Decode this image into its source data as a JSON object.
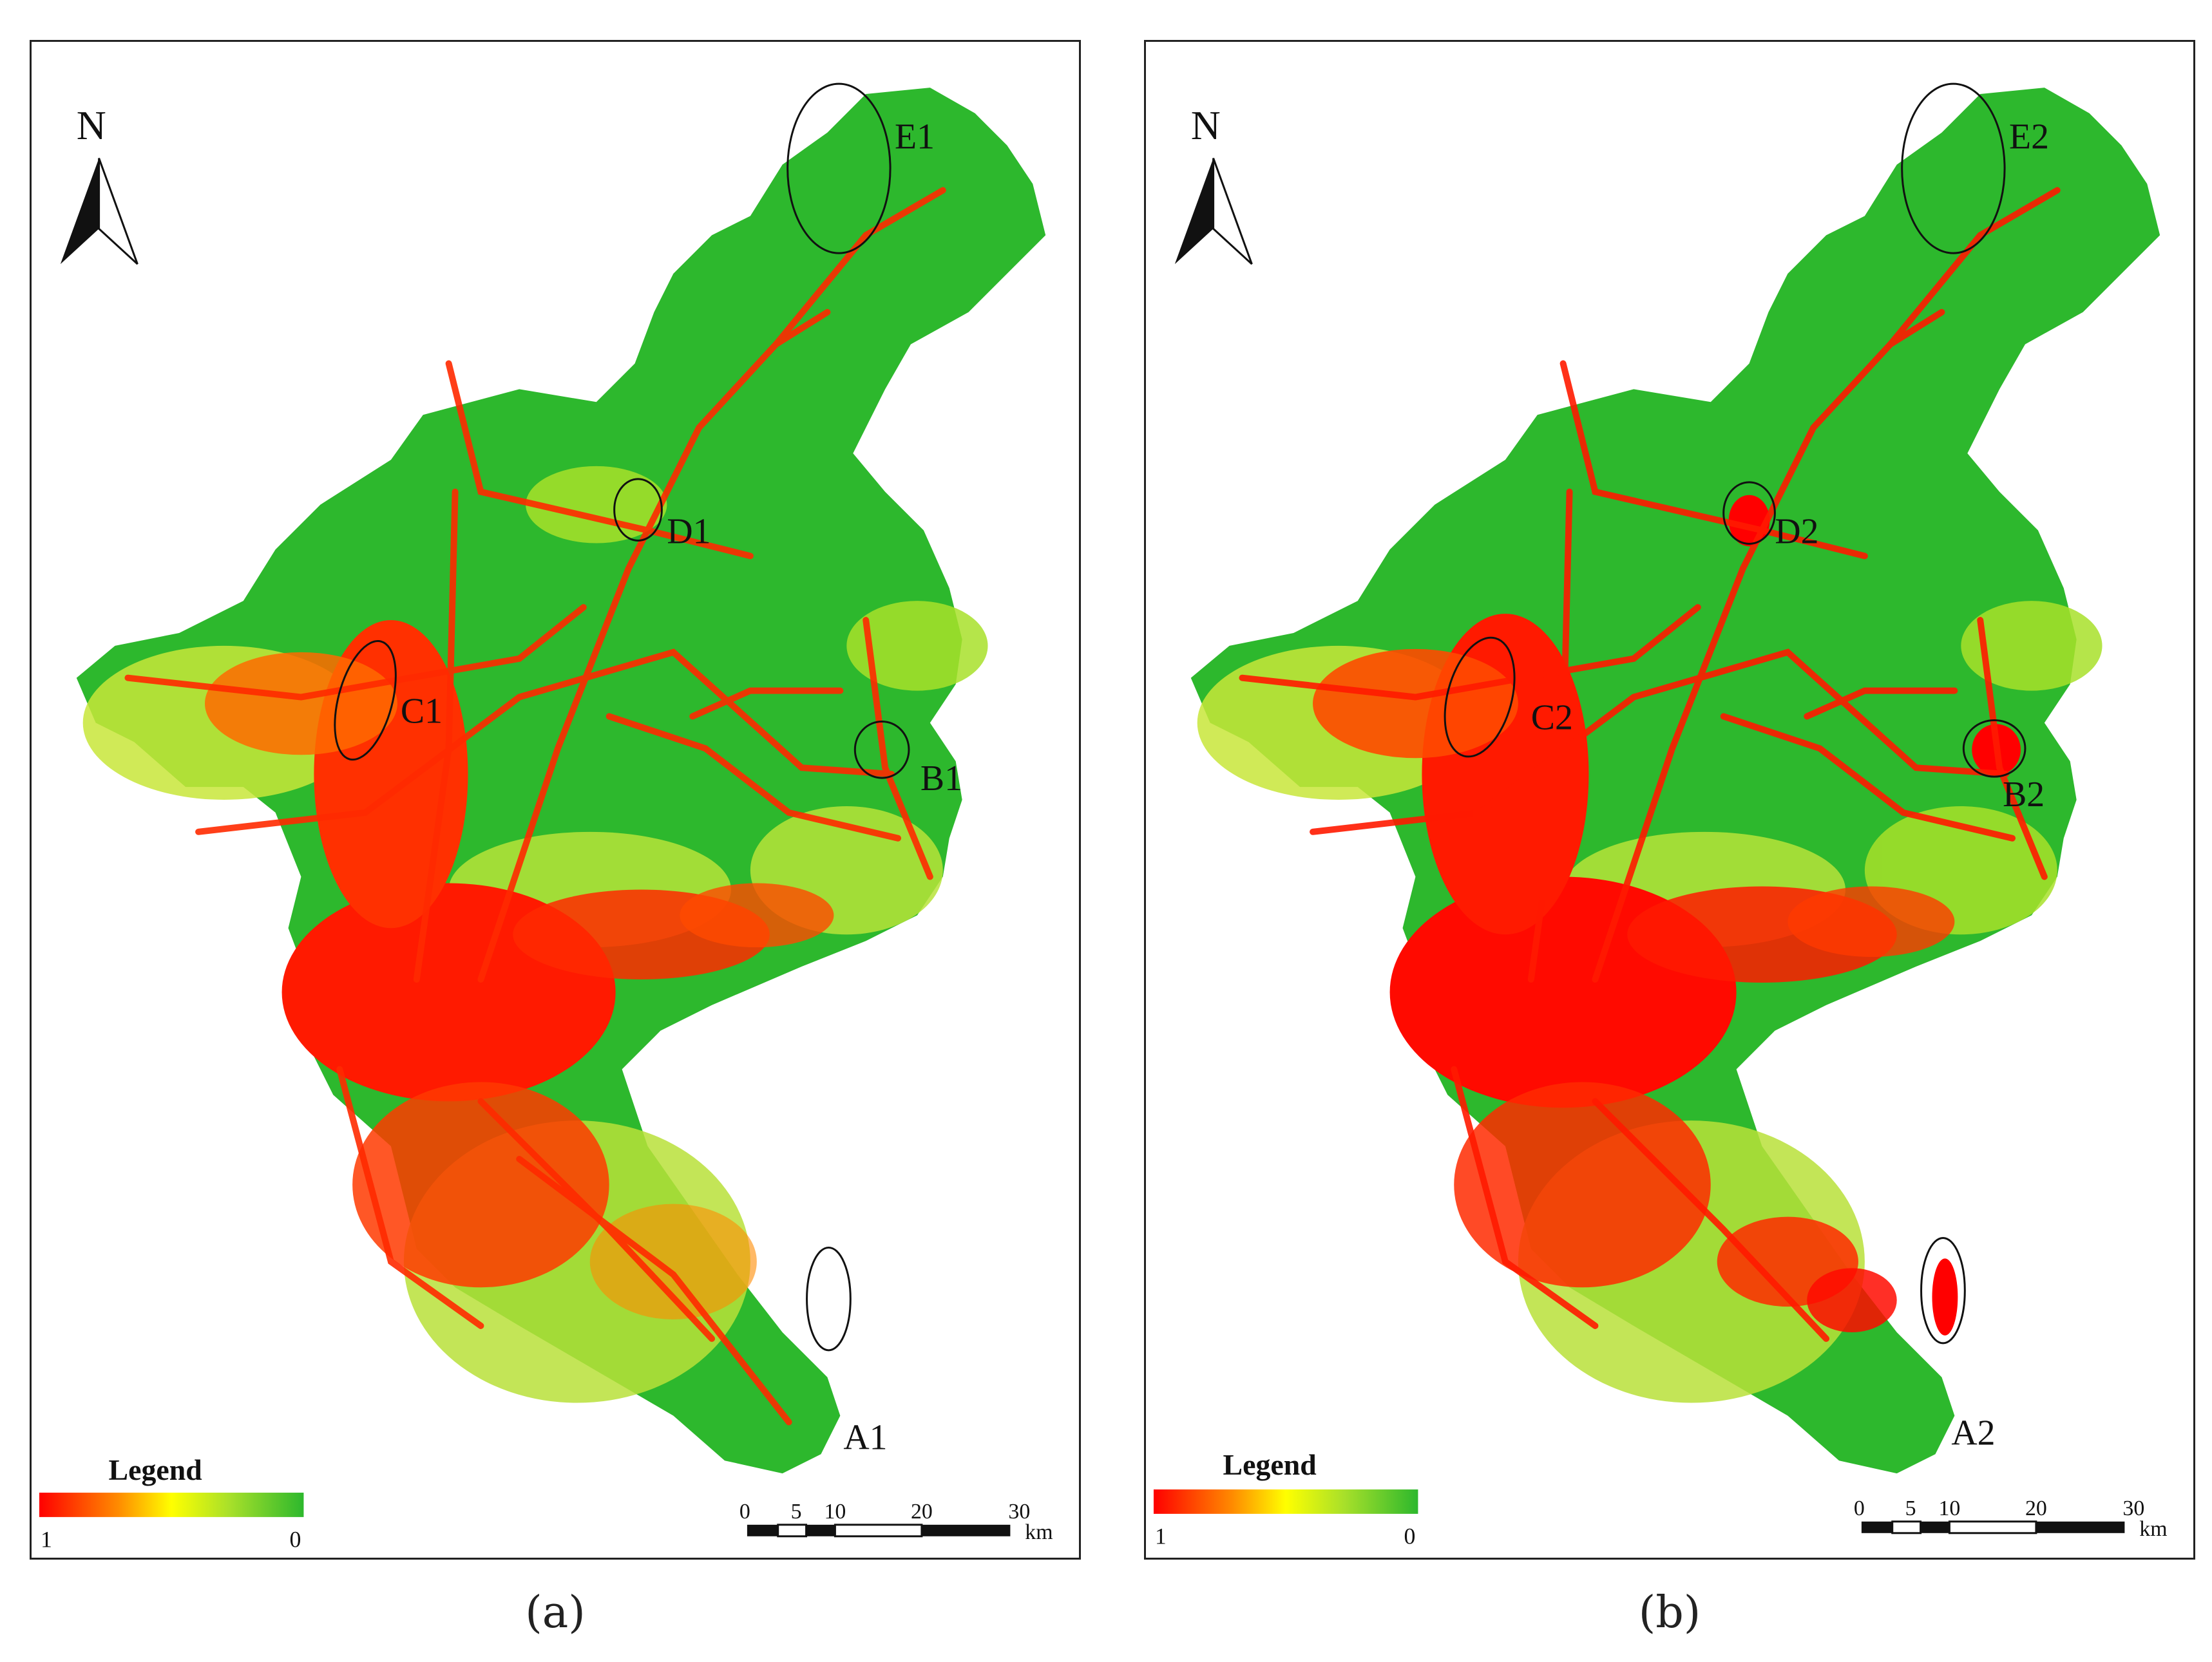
{
  "panels": [
    {
      "id": "a",
      "caption": "(a)",
      "north_label": "N",
      "legend": {
        "title": "Legend",
        "min_label": "1",
        "max_label": "0",
        "colors": [
          "#ff0000",
          "#ff7a00",
          "#ffff00",
          "#a8e02a",
          "#2db82d"
        ]
      },
      "scale_bar": {
        "ticks": [
          "0",
          "5",
          "10",
          "20",
          "30"
        ],
        "unit": "km"
      },
      "regions": [
        "A1",
        "B1",
        "C1",
        "D1",
        "E1"
      ]
    },
    {
      "id": "b",
      "caption": "(b)",
      "north_label": "N",
      "legend": {
        "title": "Legend",
        "min_label": "1",
        "max_label": "0",
        "colors": [
          "#ff0000",
          "#ff7a00",
          "#ffff00",
          "#a8e02a",
          "#2db82d"
        ]
      },
      "scale_bar": {
        "ticks": [
          "0",
          "5",
          "10",
          "20",
          "30"
        ],
        "unit": "km"
      },
      "regions": [
        "A2",
        "B2",
        "C2",
        "D2",
        "E2"
      ]
    }
  ],
  "colors": {
    "high": "#ff0000",
    "mid_high": "#ff8c00",
    "mid": "#ffff00",
    "low": "#2db82d"
  }
}
